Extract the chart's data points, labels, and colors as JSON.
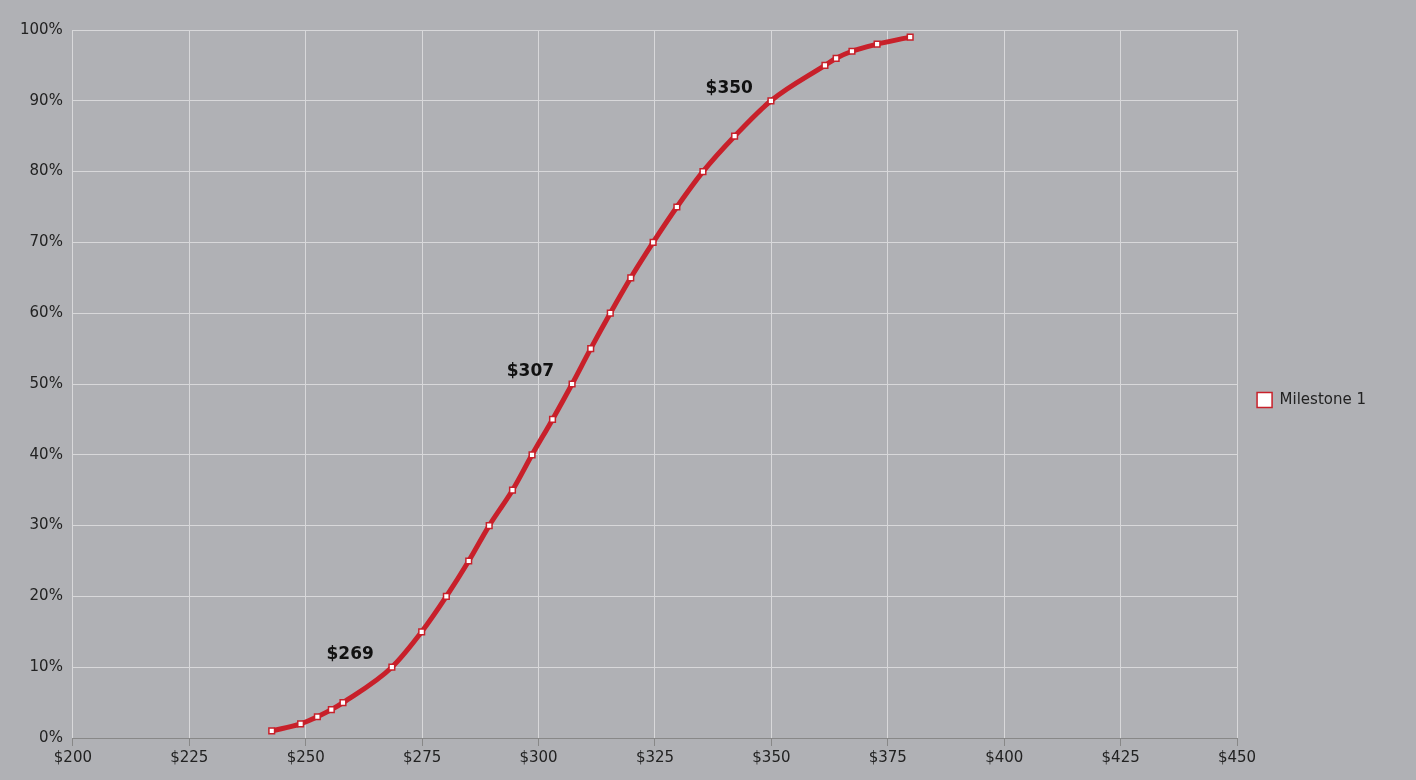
{
  "chart_data": {
    "type": "line",
    "x": [
      242.7,
      248.9,
      252.5,
      255.5,
      258,
      268.5,
      274.9,
      280.2,
      285,
      289.4,
      294.4,
      298.6,
      303,
      307.2,
      311.2,
      315.4,
      319.8,
      324.6,
      329.7,
      335.3,
      342.1,
      349.9,
      361.5,
      363.9,
      367.3,
      372.7,
      379.8
    ],
    "series": [
      {
        "name": "Milestone 1",
        "color": "#c8202a",
        "values": [
          1,
          2,
          3,
          4,
          5,
          10,
          15,
          20,
          25,
          30,
          35,
          40,
          45,
          50,
          55,
          60,
          65,
          70,
          75,
          80,
          85,
          90,
          95,
          96,
          97,
          98,
          99
        ]
      }
    ],
    "xlim": [
      200,
      450
    ],
    "xticks": [
      {
        "value": 200,
        "label": "$200"
      },
      {
        "value": 225,
        "label": "$225"
      },
      {
        "value": 250,
        "label": "$250"
      },
      {
        "value": 275,
        "label": "$275"
      },
      {
        "value": 300,
        "label": "$300"
      },
      {
        "value": 325,
        "label": "$325"
      },
      {
        "value": 350,
        "label": "$350"
      },
      {
        "value": 375,
        "label": "$375"
      },
      {
        "value": 400,
        "label": "$400"
      },
      {
        "value": 425,
        "label": "$425"
      },
      {
        "value": 450,
        "label": "$450"
      }
    ],
    "ylim": [
      0,
      100
    ],
    "yticks": [
      {
        "value": 0,
        "label": "0%"
      },
      {
        "value": 10,
        "label": "10%"
      },
      {
        "value": 20,
        "label": "20%"
      },
      {
        "value": 30,
        "label": "30%"
      },
      {
        "value": 40,
        "label": "40%"
      },
      {
        "value": 50,
        "label": "50%"
      },
      {
        "value": 60,
        "label": "60%"
      },
      {
        "value": 70,
        "label": "70%"
      },
      {
        "value": 80,
        "label": "80%"
      },
      {
        "value": 90,
        "label": "90%"
      },
      {
        "value": 100,
        "label": "100%"
      }
    ],
    "annotations": [
      {
        "text": "$269",
        "x": 268.5,
        "y": 10
      },
      {
        "text": "$307",
        "x": 307.2,
        "y": 50
      },
      {
        "text": "$350",
        "x": 349.9,
        "y": 90
      }
    ],
    "grid": true,
    "legend": "right",
    "marker": "square",
    "line_style": "solid"
  }
}
